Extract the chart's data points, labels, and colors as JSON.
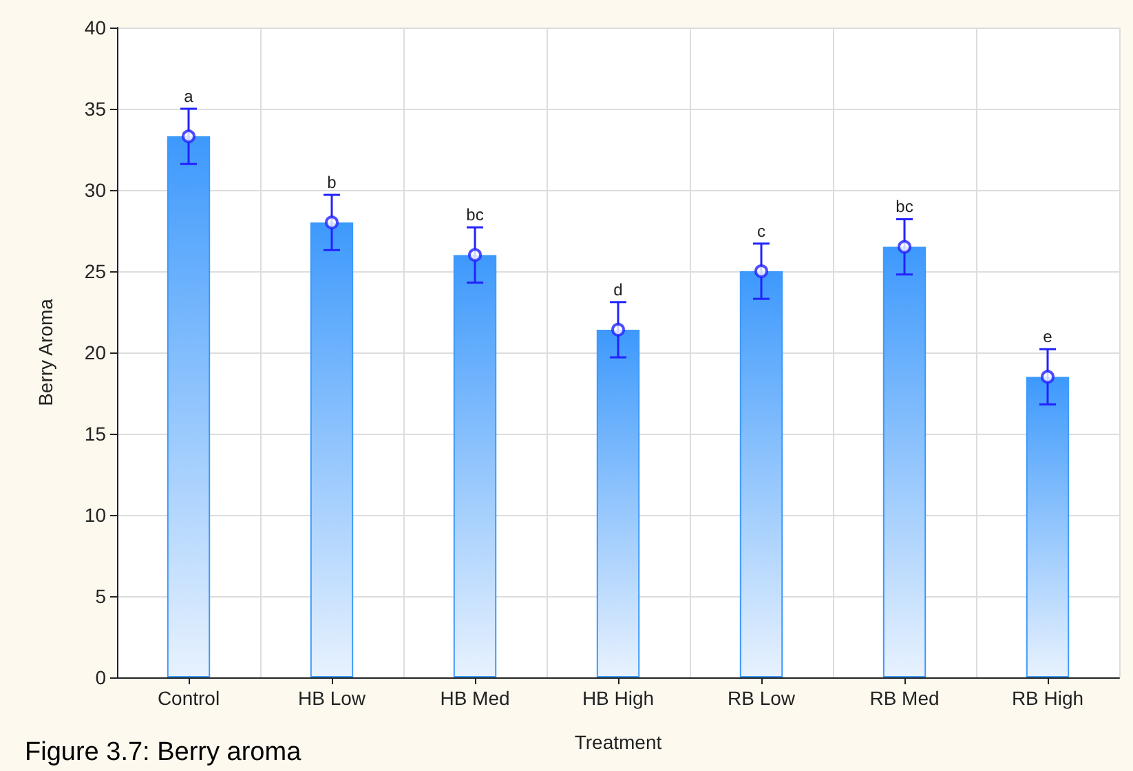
{
  "chart_data": {
    "type": "bar",
    "xlabel": "Treatment",
    "ylabel": "Berry Aroma",
    "categories": [
      "Control",
      "HB Low",
      "HB Med",
      "HB High",
      "RB Low",
      "RB Med",
      "RB High"
    ],
    "series": [
      {
        "color": "#3d99fc",
        "values": [
          33.3,
          28.0,
          26.0,
          21.4,
          25.0,
          26.5,
          18.5
        ],
        "errors": [
          1.7,
          1.7,
          1.7,
          1.7,
          1.7,
          1.7,
          1.7
        ]
      },
      {
        "type": "scatter",
        "color": "#2222ff",
        "x": [
          "Control",
          "HB Low",
          "HB Med",
          "HB High",
          "RB Low",
          "RB Med",
          "RB High"
        ],
        "values": [
          33.3,
          28.0,
          26.0,
          21.4,
          25.0,
          26.5,
          18.5
        ]
      }
    ],
    "ylim": [
      0,
      40
    ],
    "yticks": [
      0,
      5,
      10,
      15,
      20,
      25,
      30,
      35,
      40
    ],
    "grid": true,
    "marker": "circle",
    "annotations": [
      {
        "text": "a",
        "x": "Control",
        "y": 35.0
      },
      {
        "text": "b",
        "x": "HB Low",
        "y": 29.7
      },
      {
        "text": "bc",
        "x": "HB Med",
        "y": 27.7
      },
      {
        "text": "d",
        "x": "HB High",
        "y": 23.1
      },
      {
        "text": "c",
        "x": "RB Low",
        "y": 26.7
      },
      {
        "text": "bc",
        "x": "RB Med",
        "y": 28.2
      },
      {
        "text": "e",
        "x": "RB High",
        "y": 20.2
      },
      "Figure 3.7: Berry aroma"
    ]
  }
}
